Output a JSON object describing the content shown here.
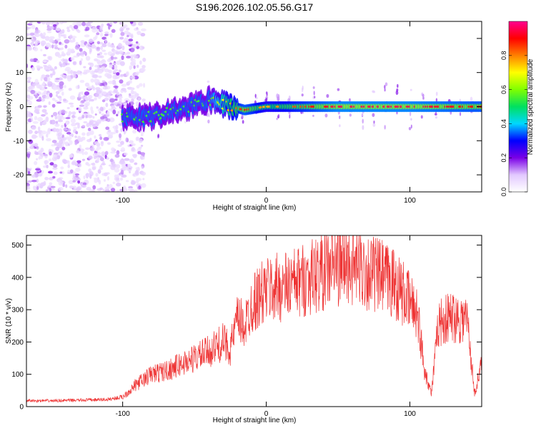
{
  "title": "S196.2026.102.05.56.G17",
  "chart_data": [
    {
      "type": "heatmap",
      "xlabel": "Height of straight line (km)",
      "ylabel": "Frequency (Hz)",
      "xlim": [
        -167,
        150
      ],
      "ylim": [
        -25,
        25
      ],
      "xticks": [
        -100,
        0,
        100
      ],
      "yticks": [
        -20,
        -10,
        0,
        10,
        20
      ],
      "colorbar": {
        "label": "Normalized spectral amplitude",
        "range": [
          0.0,
          1.0
        ],
        "ticks": [
          0.0,
          0.2,
          0.4,
          0.6,
          0.8
        ],
        "tick_labels": [
          "0.0",
          "0.2",
          "0.4",
          "0.6",
          "0.8"
        ],
        "colors": [
          "#ffffff",
          "#e2c8ff",
          "#7a00e6",
          "#0000ff",
          "#00d8ff",
          "#00e060",
          "#80ff00",
          "#ffff00",
          "#ff8000",
          "#ff0000",
          "#ff0090"
        ]
      },
      "description_points": [
        {
          "x": -80,
          "freq": -3,
          "amplitude": 0.5
        },
        {
          "x": -60,
          "freq": -1,
          "amplitude": 0.5
        },
        {
          "x": -40,
          "freq": 2,
          "amplitude": 0.5
        },
        {
          "x": -15,
          "freq": -1,
          "amplitude": 0.85
        },
        {
          "x": 0,
          "freq": 0,
          "amplitude": 0.7
        },
        {
          "x": 50,
          "freq": 0,
          "amplitude": 0.9
        },
        {
          "x": 100,
          "freq": 0,
          "amplitude": 0.9
        },
        {
          "x": 145,
          "freq": 0,
          "amplitude": 0.85
        }
      ]
    },
    {
      "type": "line",
      "xlabel": "Height of straight line (km)",
      "ylabel": "SNR (10 * v/v)",
      "xlim": [
        -167,
        150
      ],
      "ylim": [
        0,
        530
      ],
      "xticks": [
        -100,
        0,
        100
      ],
      "yticks": [
        0,
        100,
        200,
        300,
        400,
        500
      ],
      "color": "#ee3333",
      "series": [
        {
          "name": "SNR",
          "x": [
            -167,
            -150,
            -130,
            -110,
            -100,
            -90,
            -80,
            -70,
            -60,
            -50,
            -40,
            -30,
            -25,
            -20,
            -15,
            -10,
            0,
            10,
            20,
            30,
            40,
            50,
            60,
            70,
            80,
            90,
            100,
            105,
            110,
            115,
            120,
            130,
            140,
            145,
            150
          ],
          "y": [
            18,
            18,
            20,
            22,
            30,
            70,
            100,
            110,
            130,
            150,
            170,
            200,
            180,
            270,
            250,
            320,
            360,
            370,
            380,
            400,
            420,
            440,
            440,
            420,
            400,
            380,
            320,
            300,
            120,
            40,
            260,
            280,
            270,
            40,
            130
          ]
        }
      ]
    }
  ]
}
